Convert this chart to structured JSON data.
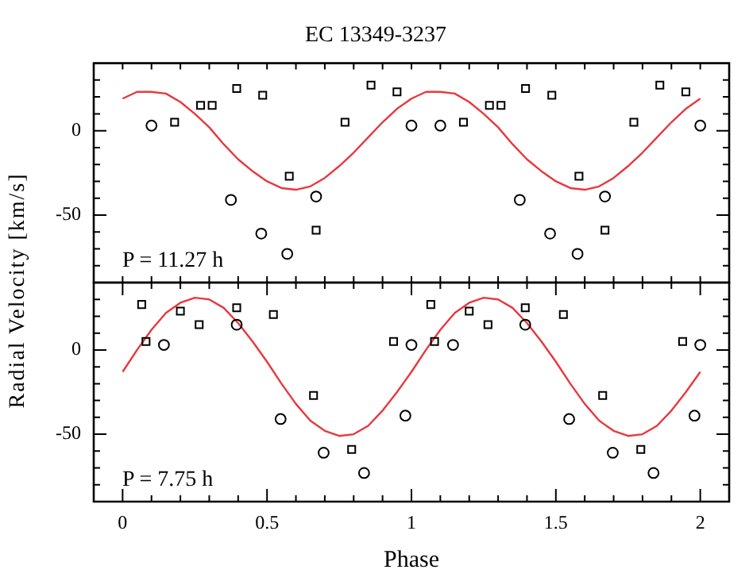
{
  "chart_data": [
    {
      "type": "scatter",
      "title": "EC 13349-3237",
      "ylabel": "Radial Velocity [km/s]",
      "annotations": [
        "P = 11.27 h"
      ],
      "xlim": [
        -0.1,
        2.1
      ],
      "ylim": [
        -90,
        40
      ],
      "tick_labels": "y",
      "legend": false,
      "grid": false,
      "xticks": [
        {
          "value": -0.1,
          "label": null
        },
        {
          "value": 0,
          "label": null
        },
        {
          "value": 0.1,
          "label": null
        },
        {
          "value": 0.2,
          "label": null
        },
        {
          "value": 0.3,
          "label": null
        },
        {
          "value": 0.4,
          "label": null
        },
        {
          "value": 0.5,
          "label": null
        },
        {
          "value": 0.6,
          "label": null
        },
        {
          "value": 0.7,
          "label": null
        },
        {
          "value": 0.8,
          "label": null
        },
        {
          "value": 0.9,
          "label": null
        },
        {
          "value": 1,
          "label": null
        },
        {
          "value": 1.1,
          "label": null
        },
        {
          "value": 1.2,
          "label": null
        },
        {
          "value": 1.3,
          "label": null
        },
        {
          "value": 1.4,
          "label": null
        },
        {
          "value": 1.5,
          "label": null
        },
        {
          "value": 1.6,
          "label": null
        },
        {
          "value": 1.7,
          "label": null
        },
        {
          "value": 1.8,
          "label": null
        },
        {
          "value": 1.9,
          "label": null
        },
        {
          "value": 2,
          "label": null
        }
      ],
      "yticks": [
        {
          "value": -80,
          "label": null
        },
        {
          "value": -70,
          "label": null
        },
        {
          "value": -60,
          "label": null
        },
        {
          "value": -50,
          "label": "-50"
        },
        {
          "value": -40,
          "label": null
        },
        {
          "value": -30,
          "label": null
        },
        {
          "value": -20,
          "label": null
        },
        {
          "value": -10,
          "label": null
        },
        {
          "value": 0,
          "label": "0"
        },
        {
          "value": 10,
          "label": null
        },
        {
          "value": 20,
          "label": null
        },
        {
          "value": 30,
          "label": null
        }
      ],
      "series": [
        {
          "type": "scatter",
          "marker": "circle",
          "color": "#000000",
          "x": [
            0.1,
            0.375,
            0.48,
            0.57,
            0.67,
            1.0,
            1.1,
            1.375,
            1.48,
            1.575,
            1.67,
            2.0
          ],
          "values": [
            3,
            -41,
            -61,
            -73,
            -39,
            3,
            3,
            -41,
            -61,
            -73,
            -39,
            3
          ]
        },
        {
          "type": "scatter",
          "marker": "square",
          "color": "#000000",
          "x": [
            0.18,
            0.27,
            0.31,
            0.395,
            0.485,
            0.577,
            0.67,
            0.77,
            0.86,
            0.95,
            1.18,
            1.27,
            1.31,
            1.395,
            1.486,
            1.58,
            1.67,
            1.77,
            1.86,
            1.95
          ],
          "values": [
            5,
            15,
            15,
            25,
            21,
            -27,
            -59,
            5,
            27,
            23,
            5,
            15,
            15,
            25,
            21,
            -27,
            -59,
            5,
            27,
            23
          ]
        },
        {
          "type": "line",
          "marker": "none",
          "color": "#e8383d",
          "x": [
            0,
            0.05,
            0.1,
            0.15,
            0.2,
            0.25,
            0.3,
            0.35,
            0.4,
            0.45,
            0.5,
            0.55,
            0.6,
            0.65,
            0.7,
            0.75,
            0.8,
            0.85,
            0.9,
            0.95,
            1,
            1.05,
            1.1,
            1.15,
            1.2,
            1.25,
            1.3,
            1.35,
            1.4,
            1.45,
            1.5,
            1.55,
            1.6,
            1.65,
            1.7,
            1.75,
            1.8,
            1.85,
            1.9,
            1.95,
            2
          ],
          "values": [
            19,
            23,
            23,
            22,
            17,
            10,
            2,
            -8,
            -17,
            -24,
            -30,
            -34,
            -35,
            -33,
            -28,
            -21,
            -13,
            -4,
            5,
            13,
            19,
            23,
            23,
            22,
            17,
            10,
            2,
            -8,
            -17,
            -24,
            -30,
            -34,
            -35,
            -33,
            -28,
            -21,
            -13,
            -4,
            5,
            13,
            19
          ]
        }
      ]
    },
    {
      "type": "scatter",
      "xlabel": "Phase",
      "annotations": [
        "P = 7.75 h"
      ],
      "xlim": [
        -0.1,
        2.1
      ],
      "ylim": [
        -90,
        40
      ],
      "legend": false,
      "grid": false,
      "xticks": [
        {
          "value": -0.1,
          "label": null
        },
        0,
        {
          "value": 0.1,
          "label": null
        },
        {
          "value": 0.2,
          "label": null
        },
        {
          "value": 0.3,
          "label": null
        },
        {
          "value": 0.4,
          "label": null
        },
        0.5,
        {
          "value": 0.6,
          "label": null
        },
        {
          "value": 0.7,
          "label": null
        },
        {
          "value": 0.8,
          "label": null
        },
        {
          "value": 0.9,
          "label": null
        },
        1,
        {
          "value": 1.1,
          "label": null
        },
        {
          "value": 1.2,
          "label": null
        },
        {
          "value": 1.3,
          "label": null
        },
        {
          "value": 1.4,
          "label": null
        },
        1.5,
        {
          "value": 1.6,
          "label": null
        },
        {
          "value": 1.7,
          "label": null
        },
        {
          "value": 1.8,
          "label": null
        },
        {
          "value": 1.9,
          "label": null
        },
        2
      ],
      "yticks": [
        {
          "value": -80,
          "label": null
        },
        {
          "value": -70,
          "label": null
        },
        {
          "value": -60,
          "label": null
        },
        {
          "value": -50,
          "label": "-50"
        },
        {
          "value": -40,
          "label": null
        },
        {
          "value": -30,
          "label": null
        },
        {
          "value": -20,
          "label": null
        },
        {
          "value": -10,
          "label": null
        },
        {
          "value": 0,
          "label": "0"
        },
        {
          "value": 10,
          "label": null
        },
        {
          "value": 20,
          "label": null
        },
        {
          "value": 30,
          "label": null
        }
      ],
      "series": [
        {
          "type": "scatter",
          "marker": "circle",
          "color": "#000000",
          "x": [
            0.143,
            0.395,
            0.547,
            0.696,
            0.836,
            0.979,
            1.0,
            1.144,
            1.394,
            1.546,
            1.697,
            1.838,
            1.98,
            2.0
          ],
          "values": [
            3,
            15,
            -41,
            -61,
            -73,
            -39,
            3,
            3,
            15,
            -41,
            -61,
            -73,
            -39,
            3
          ]
        },
        {
          "type": "scatter",
          "marker": "square",
          "color": "#000000",
          "x": [
            0.066,
            0.081,
            0.2,
            0.265,
            0.395,
            0.522,
            0.661,
            0.793,
            0.938,
            1.067,
            1.08,
            1.2,
            1.265,
            1.394,
            1.526,
            1.662,
            1.794,
            1.939
          ],
          "values": [
            27,
            5,
            23,
            15,
            25,
            21,
            -27,
            -59,
            5,
            27,
            5,
            23,
            15,
            25,
            21,
            -27,
            -59,
            5
          ]
        },
        {
          "type": "line",
          "marker": "none",
          "color": "#e8383d",
          "x": [
            0,
            0.05,
            0.1,
            0.15,
            0.2,
            0.25,
            0.3,
            0.35,
            0.4,
            0.45,
            0.5,
            0.55,
            0.6,
            0.65,
            0.7,
            0.75,
            0.8,
            0.85,
            0.9,
            0.95,
            1,
            1.05,
            1.1,
            1.15,
            1.2,
            1.25,
            1.3,
            1.35,
            1.4,
            1.45,
            1.5,
            1.55,
            1.6,
            1.65,
            1.7,
            1.75,
            1.8,
            1.85,
            1.9,
            1.95,
            2
          ],
          "values": [
            -13,
            0,
            12,
            22,
            28,
            31,
            30,
            25,
            16,
            5,
            -7,
            -20,
            -32,
            -42,
            -48,
            -51,
            -50,
            -45,
            -36,
            -25,
            -13,
            0,
            12,
            22,
            28,
            31,
            30,
            25,
            16,
            5,
            -7,
            -20,
            -32,
            -42,
            -48,
            -51,
            -50,
            -45,
            -36,
            -25,
            -13
          ]
        }
      ]
    }
  ]
}
